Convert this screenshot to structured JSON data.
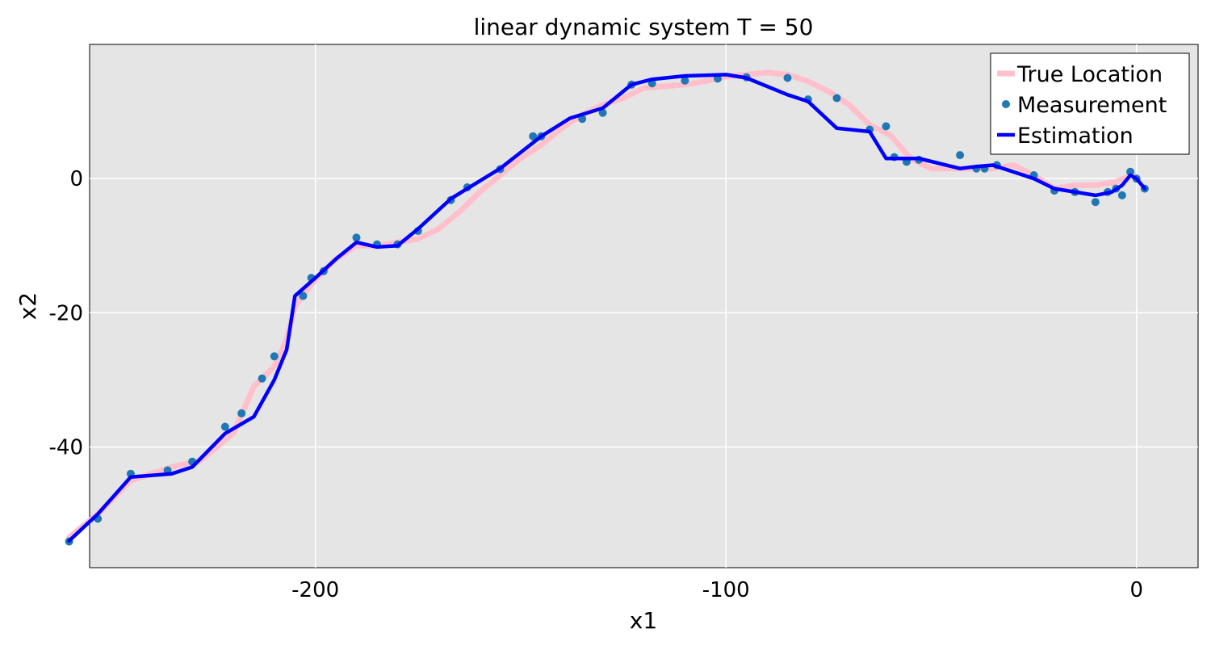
{
  "chart_data": {
    "type": "line",
    "title": "linear dynamic system T = 50",
    "xlabel": "x1",
    "ylabel": "x2",
    "xlim": [
      -255,
      15
    ],
    "ylim": [
      -58,
      20
    ],
    "x_ticks": [
      -200,
      -100,
      0
    ],
    "x_tick_labels": [
      "-200",
      "-100",
      "0"
    ],
    "y_ticks": [
      -40,
      -20,
      0
    ],
    "y_tick_labels": [
      "-40",
      "-20",
      "0"
    ],
    "grid": true,
    "legend_position": "top-right",
    "colors": {
      "plot_background": "#e5e5e5",
      "grid": "#ffffff",
      "true_location": "#ffc0cb",
      "measurement": "#1f78b4",
      "estimation": "#0000ff"
    },
    "series": [
      {
        "name": "True Location",
        "kind": "line",
        "x": [
          0,
          -1,
          -2,
          -5,
          -10,
          -15,
          -20,
          -25,
          -30,
          -35,
          -40,
          -45,
          -50,
          -55,
          -60,
          -65,
          -70,
          -75,
          -80,
          -85,
          -90,
          -95,
          -100,
          -105,
          -110,
          -120,
          -125,
          -130,
          -135,
          -140,
          -145,
          -150,
          -155,
          -160,
          -165,
          -170,
          -175,
          -180,
          -185,
          -190,
          -195,
          -200,
          -205,
          -207,
          -210,
          -215,
          -220,
          -228,
          -235,
          -245,
          -253,
          -260
        ],
        "y": [
          0,
          0.8,
          0.3,
          -0.5,
          -1,
          -1,
          -1.5,
          0.5,
          2,
          1.5,
          1.5,
          1.5,
          1.5,
          3,
          6.5,
          8,
          11,
          13,
          14.5,
          15.5,
          15.8,
          15.5,
          15.2,
          14.5,
          14,
          13.5,
          12,
          11,
          9.5,
          7.5,
          5,
          3,
          0.5,
          -2,
          -5,
          -7.5,
          -9,
          -9.5,
          -10,
          -10,
          -12,
          -15,
          -19,
          -24,
          -28,
          -31,
          -38,
          -42,
          -43,
          -45,
          -50,
          -53.5
        ]
      },
      {
        "name": "Measurement",
        "kind": "scatter",
        "x": [
          2,
          0,
          -1.5,
          -3.5,
          -5,
          -7,
          -10,
          -15,
          -20,
          -25,
          -34,
          -37,
          -39,
          -43,
          -53,
          -56,
          -59,
          -61,
          -65,
          -73,
          -80,
          -85,
          -95,
          -102,
          -110,
          -118,
          -123,
          -130,
          -135,
          -145,
          -147,
          -155,
          -163,
          -167,
          -175,
          -180,
          -185,
          -190,
          -198,
          -201,
          -203,
          -210,
          -213,
          -218,
          -222,
          -230,
          -236,
          -245,
          -253,
          -260
        ],
        "y": [
          -1.5,
          0,
          1,
          -2.5,
          -1.5,
          -2,
          -3.5,
          -2,
          -1.8,
          0.5,
          2,
          1.5,
          1.5,
          3.5,
          2.8,
          2.5,
          3.2,
          7.8,
          7.3,
          12,
          11.8,
          15,
          15.1,
          14.9,
          14.6,
          14.2,
          14,
          9.8,
          8.9,
          6.3,
          6.3,
          1.4,
          -1.3,
          -3.2,
          -7.8,
          -9.8,
          -9.8,
          -8.8,
          -13.8,
          -14.8,
          -17.5,
          -26.5,
          -29.8,
          -35,
          -37,
          -42.2,
          -43.5,
          -44,
          -50.7,
          -54.1
        ]
      },
      {
        "name": "Estimation",
        "kind": "line",
        "x": [
          2,
          0,
          -1.5,
          -3.5,
          -6,
          -10,
          -20,
          -25,
          -35,
          -39,
          -43,
          -53,
          -57,
          -61,
          -65,
          -73,
          -80,
          -85,
          -95,
          -100,
          -110,
          -118,
          -123,
          -130,
          -138,
          -145,
          -155,
          -163,
          -167,
          -175,
          -180,
          -185,
          -190,
          -195,
          -200,
          -205,
          -207,
          -210,
          -215,
          -222,
          -230,
          -235,
          -245,
          -253,
          -260
        ],
        "y": [
          -1.5,
          0,
          0.5,
          -1,
          -2,
          -2.5,
          -1.5,
          0,
          2,
          1.8,
          1.5,
          3,
          3,
          3,
          7,
          7.5,
          11.5,
          12.5,
          15,
          15.5,
          15.3,
          14.8,
          14,
          10.5,
          9,
          6.3,
          1.5,
          -1.5,
          -3,
          -7.5,
          -10,
          -10.2,
          -9.5,
          -12,
          -14.8,
          -17.5,
          -25.5,
          -30,
          -35.5,
          -38,
          -43,
          -44,
          -44.5,
          -50,
          -54
        ]
      }
    ]
  }
}
